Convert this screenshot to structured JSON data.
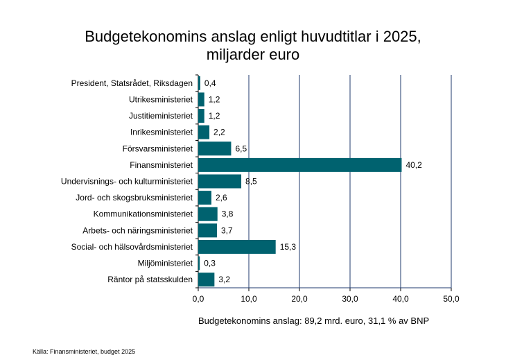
{
  "chart_data": {
    "type": "bar",
    "orientation": "horizontal",
    "title_line1": "Budgetekonomins anslag enligt huvudtitlar i 2025,",
    "title_line2": "miljarder euro",
    "categories": [
      "President, Statsrådet, Riksdagen",
      "Utrikesministeriet",
      "Justitieministeriet",
      "Inrikesministeriet",
      "Försvarsministeriet",
      "Finansministeriet",
      "Undervisnings- och kulturministeriet",
      "Jord- och skogsbruksministeriet",
      "Kommunikationsministeriet",
      "Arbets- och näringsministeriet",
      "Social- och hälsovårdsministeriet",
      "Miljöministeriet",
      "Räntor på statsskulden"
    ],
    "values": [
      0.4,
      1.2,
      1.2,
      2.2,
      6.5,
      40.2,
      8.5,
      2.6,
      3.8,
      3.7,
      15.3,
      0.3,
      3.2
    ],
    "value_labels": [
      "0,4",
      "1,2",
      "1,2",
      "2,2",
      "6,5",
      "40,2",
      "8,5",
      "2,6",
      "3,8",
      "3,7",
      "15,3",
      "0,3",
      "3,2"
    ],
    "xlim": [
      0,
      50
    ],
    "xticks": [
      0,
      10,
      20,
      30,
      40,
      50
    ],
    "xtick_labels": [
      "0,0",
      "10,0",
      "20,0",
      "30,0",
      "40,0",
      "50,0"
    ],
    "grid": true,
    "xlabel": "Budgetekonomins anslag: 89,2 mrd. euro, 31,1 % av BNP",
    "source": "Källa: Finansministeriet, budget 2025",
    "bar_color": "#00626f",
    "grid_color": "#1f3a6e"
  }
}
